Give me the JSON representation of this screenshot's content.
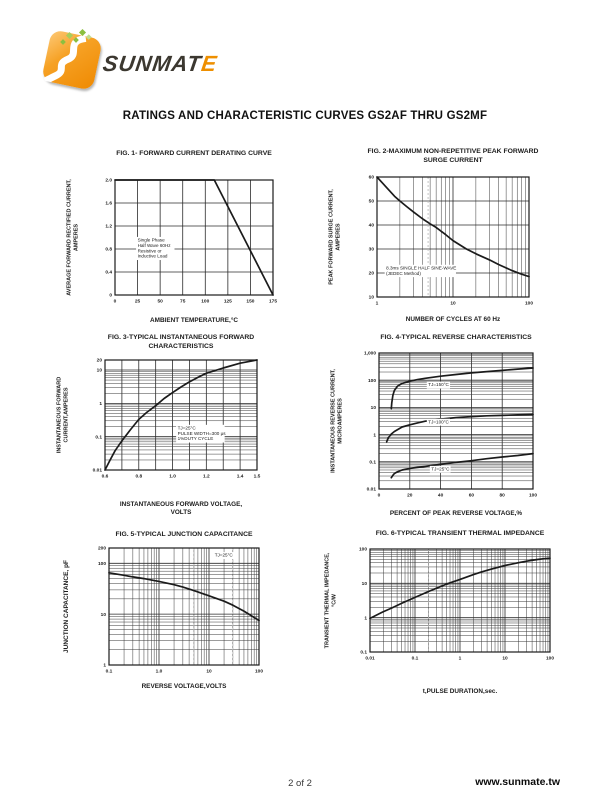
{
  "logo": {
    "brand": "SUNMATE",
    "brand_main": "SUNMAT",
    "brand_accent": "E"
  },
  "page_title": "RATINGS AND CHARACTERISTIC CURVES GS2AF THRU GS2MF",
  "footer": {
    "page_number": "2 of 2",
    "website": "www.sunmate.tw"
  },
  "colors": {
    "ink": "#1b1b1b",
    "grid_major": "#2b2b2b",
    "grid_minor": "#3a3a3a",
    "ghost_line": "#b5b5b5",
    "logo_orange": "#ef8a02",
    "logo_green": "#8cbf3f",
    "brand_dark": "#3c3830",
    "brand_accent_orange": "#ee8f00"
  },
  "chart_data": [
    {
      "type": "line",
      "title": "FIG. 1- FORWARD CURRENT DERATING CURVE",
      "xlabel": "AMBIENT TEMPERATURE,°C",
      "ylabel": "AVERAGE FORWARD RECTIFIED CURRENT,\nAMPERES",
      "x": {
        "scale": "linear",
        "min": 0,
        "max": 175,
        "grid_step": 25,
        "ticks": [
          0,
          25,
          50,
          75,
          100,
          125,
          150,
          175
        ],
        "tick_labels": [
          "0",
          "25",
          "50",
          "75",
          "100",
          "125",
          "150",
          "175"
        ]
      },
      "y": {
        "scale": "linear",
        "min": 0,
        "max": 2.0,
        "grid_step": 0.4,
        "ticks": [
          0,
          0.4,
          0.8,
          1.2,
          1.6,
          2.0
        ],
        "tick_labels": [
          "0",
          "0.4",
          "0.8",
          "1.2",
          "1.6",
          "2.0"
        ]
      },
      "series": [
        {
          "name": "derating-curve",
          "points": [
            [
              0,
              2
            ],
            [
              110,
              2
            ],
            [
              175,
              0
            ]
          ]
        }
      ],
      "annotations": [
        {
          "x": 25,
          "y": 0.93,
          "lines": [
            "Single Phase",
            "Half Wave 60Hz",
            "Resistive or",
            "Inductive Load"
          ]
        }
      ],
      "ghost_vlines": []
    },
    {
      "type": "line",
      "title": "FIG. 2-MAXIMUM NON-REPETITIVE PEAK FORWARD\nSURGE CURRENT",
      "xlabel": "NUMBER OF CYCLES AT 60 Hz",
      "ylabel": "PEAK  FORWARD SURGE CURRENT,\nAMPERES",
      "x": {
        "scale": "log",
        "min": 1,
        "max": 100,
        "ticks": [
          1,
          10,
          100
        ],
        "tick_labels": [
          "1",
          "10",
          "100"
        ]
      },
      "y": {
        "scale": "linear",
        "min": 10,
        "max": 60,
        "grid_step": 10,
        "ticks": [
          10,
          20,
          30,
          40,
          50,
          60
        ],
        "tick_labels": [
          "10",
          "20",
          "30",
          "40",
          "50",
          "60"
        ]
      },
      "series": [
        {
          "name": "surge-current-curve",
          "points": [
            [
              1,
              60
            ],
            [
              1.3,
              56
            ],
            [
              1.7,
              52
            ],
            [
              2,
              50
            ],
            [
              2.5,
              47.5
            ],
            [
              3,
              45.5
            ],
            [
              4,
              42.5
            ],
            [
              5,
              40.5
            ],
            [
              6,
              39
            ],
            [
              8,
              36
            ],
            [
              10,
              33.5
            ],
            [
              15,
              30
            ],
            [
              20,
              28
            ],
            [
              30,
              25.5
            ],
            [
              40,
              23.5
            ],
            [
              60,
              21
            ],
            [
              80,
              19.5
            ],
            [
              100,
              18.5
            ]
          ]
        }
      ],
      "annotations": [
        {
          "x": 1.32,
          "y": 21.5,
          "lines": [
            "8.3ms SINGLE HALF SINE-WAVE",
            "(JEDEC Method)"
          ]
        }
      ],
      "ghost_vlines": [
        4.7
      ]
    },
    {
      "type": "line",
      "title": "FIG. 3-TYPICAL INSTANTANEOUS FORWARD\nCHARACTERISTICS",
      "xlabel": "INSTANTANEOUS FORWARD VOLTAGE,\nVOLTS",
      "ylabel": "INSTANTANEOUS FORWARD\nCURRENT,AMPERES",
      "x": {
        "scale": "linear",
        "min": 0.6,
        "max": 1.5,
        "grid_step": 0.1,
        "ticks": [
          0.6,
          0.8,
          1.0,
          1.2,
          1.4,
          1.5
        ],
        "tick_labels": [
          "0.6",
          "0.8",
          "1.0",
          "1.2",
          "1.4",
          "1.5"
        ]
      },
      "y": {
        "scale": "log",
        "min": 0.01,
        "max": 20,
        "ticks": [
          0.01,
          0.1,
          1,
          10,
          20
        ],
        "tick_labels": [
          "0.01",
          "0.1",
          "1",
          "10",
          "20"
        ]
      },
      "series": [
        {
          "name": "forward-characteristic-curve",
          "points": [
            [
              0.6,
              0.01
            ],
            [
              0.63,
              0.02
            ],
            [
              0.66,
              0.038
            ],
            [
              0.7,
              0.075
            ],
            [
              0.75,
              0.16
            ],
            [
              0.8,
              0.33
            ],
            [
              0.85,
              0.55
            ],
            [
              0.9,
              0.85
            ],
            [
              0.95,
              1.4
            ],
            [
              1.0,
              2.1
            ],
            [
              1.05,
              3.1
            ],
            [
              1.1,
              4.4
            ],
            [
              1.15,
              6
            ],
            [
              1.2,
              8
            ],
            [
              1.3,
              11.5
            ],
            [
              1.4,
              16
            ],
            [
              1.5,
              20
            ]
          ]
        }
      ],
      "annotations": [
        {
          "x": 1.03,
          "y": 0.165,
          "lines": [
            "TJ=25°C",
            "PULSE WIDTH=300 μs",
            "1%DUTY CYCLE"
          ]
        }
      ],
      "ghost_vlines": []
    },
    {
      "type": "line",
      "title": "FIG. 4-TYPICAL REVERSE CHARACTERISTICS",
      "xlabel": "PERCENT OF PEAK REVERSE VOLTAGE,%",
      "ylabel": "INSTANTANEOUS REVERSE CURRENT,\nMICROAMPERES",
      "x": {
        "scale": "linear",
        "min": 0,
        "max": 100,
        "grid_step": 20,
        "ticks": [
          0,
          20,
          40,
          60,
          80,
          100
        ],
        "tick_labels": [
          "0",
          "20",
          "40",
          "60",
          "80",
          "100"
        ]
      },
      "y": {
        "scale": "log",
        "min": 0.01,
        "max": 1000,
        "ticks": [
          0.01,
          0.1,
          1,
          10,
          100,
          1000
        ],
        "tick_labels": [
          "0.01",
          "0.1",
          "1",
          "10",
          "100",
          "1,000"
        ]
      },
      "series": [
        {
          "name": "tj-150c-curve",
          "points": [
            [
              8,
              9
            ],
            [
              8.3,
              15
            ],
            [
              9,
              28
            ],
            [
              10,
              42
            ],
            [
              12,
              60
            ],
            [
              15,
              76
            ],
            [
              20,
              92
            ],
            [
              25,
              105
            ],
            [
              30,
              117
            ],
            [
              40,
              140
            ],
            [
              50,
              162
            ],
            [
              60,
              185
            ],
            [
              70,
              207
            ],
            [
              80,
              230
            ],
            [
              90,
              255
            ],
            [
              100,
              280
            ]
          ]
        },
        {
          "name": "tj-100c-curve",
          "points": [
            [
              5,
              0.55
            ],
            [
              6,
              0.75
            ],
            [
              8,
              1.05
            ],
            [
              10,
              1.3
            ],
            [
              15,
              1.9
            ],
            [
              20,
              2.3
            ],
            [
              25,
              2.7
            ],
            [
              30,
              3.1
            ],
            [
              40,
              3.7
            ],
            [
              50,
              4.2
            ],
            [
              60,
              4.6
            ],
            [
              70,
              4.9
            ],
            [
              80,
              5.1
            ],
            [
              90,
              5.3
            ],
            [
              100,
              5.5
            ]
          ]
        },
        {
          "name": "tj-25c-curve",
          "points": [
            [
              8,
              0.026
            ],
            [
              9,
              0.032
            ],
            [
              10,
              0.037
            ],
            [
              12,
              0.043
            ],
            [
              15,
              0.05
            ],
            [
              20,
              0.057
            ],
            [
              30,
              0.068
            ],
            [
              40,
              0.08
            ],
            [
              50,
              0.095
            ],
            [
              60,
              0.11
            ],
            [
              70,
              0.13
            ],
            [
              80,
              0.15
            ],
            [
              90,
              0.17
            ],
            [
              100,
              0.2
            ]
          ]
        }
      ],
      "annotations": [
        {
          "x": 32,
          "y": 60,
          "lines": [
            "TJ=150°C"
          ]
        },
        {
          "x": 32,
          "y": 2.6,
          "lines": [
            "TJ=100°C"
          ]
        },
        {
          "x": 34,
          "y": 0.048,
          "lines": [
            "TJ=25°C"
          ]
        }
      ],
      "ghost_vlines": []
    },
    {
      "type": "line",
      "title": "FIG. 5-TYPICAL JUNCTION CAPACITANCE",
      "xlabel": "REVERSE VOLTAGE,VOLTS",
      "ylabel": "JUNCTION CAPACITANCE, pF",
      "x": {
        "scale": "log",
        "min": 0.1,
        "max": 100,
        "ticks": [
          0.1,
          1,
          10,
          100
        ],
        "tick_labels": [
          "0.1",
          "1.0",
          "10",
          "100"
        ]
      },
      "y": {
        "scale": "log",
        "min": 1,
        "max": 200,
        "ticks": [
          1,
          10,
          100,
          200
        ],
        "tick_labels": [
          "1",
          "10",
          "100",
          "200"
        ]
      },
      "series": [
        {
          "name": "junction-capacitance-curve",
          "points": [
            [
              0.1,
              65
            ],
            [
              0.2,
              58
            ],
            [
              0.3,
              54
            ],
            [
              0.5,
              50
            ],
            [
              1,
              44
            ],
            [
              2,
              38
            ],
            [
              3,
              34
            ],
            [
              5,
              29
            ],
            [
              10,
              23
            ],
            [
              20,
              18
            ],
            [
              30,
              15
            ],
            [
              50,
              11.5
            ],
            [
              100,
              7.5
            ]
          ]
        }
      ],
      "annotations": [
        {
          "x": 13,
          "y": 135,
          "lines": [
            "TJ=25°C"
          ]
        }
      ],
      "ghost_vlines": [
        5,
        30
      ]
    },
    {
      "type": "line",
      "title": "FIG. 6-TYPICAL TRANSIENT THERMAL IMPEDANCE",
      "xlabel": "t,PULSE DURATION,sec.",
      "ylabel": "TRANSIENT THERMAL  IMPEDANCE,\n°C/W",
      "x": {
        "scale": "log",
        "min": 0.01,
        "max": 100,
        "ticks": [
          0.01,
          0.1,
          1,
          10,
          100
        ],
        "tick_labels": [
          "0.01",
          "0.1",
          "1",
          "10",
          "100"
        ]
      },
      "y": {
        "scale": "log",
        "min": 0.1,
        "max": 100,
        "ticks": [
          0.1,
          1,
          10,
          100
        ],
        "tick_labels": [
          "0.1",
          "1",
          "10",
          "100"
        ]
      },
      "series": [
        {
          "name": "thermal-impedance-curve",
          "points": [
            [
              0.01,
              0.95
            ],
            [
              0.02,
              1.5
            ],
            [
              0.03,
              1.9
            ],
            [
              0.05,
              2.6
            ],
            [
              0.1,
              3.9
            ],
            [
              0.2,
              5.8
            ],
            [
              0.3,
              7.2
            ],
            [
              0.5,
              9.5
            ],
            [
              1,
              13
            ],
            [
              2,
              18
            ],
            [
              3,
              21.5
            ],
            [
              5,
              26
            ],
            [
              10,
              33
            ],
            [
              20,
              40
            ],
            [
              30,
              44
            ],
            [
              50,
              49
            ],
            [
              70,
              52
            ],
            [
              100,
              54
            ]
          ]
        }
      ],
      "annotations": [],
      "ghost_vlines": [
        0.2
      ]
    }
  ]
}
